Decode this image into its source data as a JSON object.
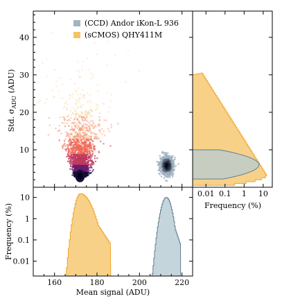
{
  "chart_data": [
    {
      "type": "scatter",
      "panel": "main",
      "xlim": [
        150,
        225
      ],
      "ylim": [
        0,
        47
      ],
      "yticks": [
        10,
        20,
        30,
        40
      ],
      "ylabel_prefix": "Std. σ",
      "ylabel_sub": "ADU",
      "ylabel_suffix": " (ADU)",
      "series": [
        {
          "name": "(CCD) Andor iKon-L 936",
          "color": "#9fb6c1",
          "dark": "#121425",
          "center": [
            212.5,
            6.0
          ],
          "spread": [
            2.8,
            2.2
          ]
        },
        {
          "name": "(sCMOS) QHY411M",
          "color": "#f5c261",
          "dark": "#160f3b",
          "center": [
            172.0,
            3.0
          ],
          "spread_x": [
            2.0,
            9.0
          ],
          "spread_y": [
            1.0,
            14.0
          ]
        }
      ]
    },
    {
      "type": "area",
      "panel": "bottom",
      "xlim": [
        150,
        225
      ],
      "xticks": [
        160,
        180,
        200,
        220
      ],
      "xlabel": "Mean signal (ADU)",
      "ylabel": "Frequency (%)",
      "yscale": "log",
      "ylim": [
        0.002,
        30
      ],
      "yticks": [
        0.01,
        0.1,
        1,
        10
      ],
      "ytick_labels": [
        "0.01",
        "0.1",
        "1",
        "10"
      ],
      "series": [
        {
          "name": "(sCMOS) QHY411M",
          "peak_x": 172,
          "peak_y": 15,
          "color": "#f5c261",
          "edge": "#f0a32a",
          "x_range": [
            162,
            186
          ]
        },
        {
          "name": "(CCD) Andor iKon-L 936",
          "peak_x": 212.5,
          "peak_y": 10,
          "color": "#b7cbd3",
          "edge": "#5f7f8e",
          "x_range": [
            206,
            219
          ]
        }
      ]
    },
    {
      "type": "area",
      "panel": "right",
      "orientation": "horizontal",
      "xscale": "log",
      "xlim": [
        0.002,
        30
      ],
      "xticks": [
        0.01,
        0.1,
        1,
        10
      ],
      "xtick_labels": [
        "0.01",
        "0.1",
        "1",
        "10"
      ],
      "xlabel": "Frequency (%)",
      "ylim": [
        0,
        47
      ]
    }
  ],
  "legend": {
    "position": "top",
    "items": [
      {
        "label": "(CCD) Andor iKon-L 936",
        "color": "#9fb6c1"
      },
      {
        "label": "(sCMOS) QHY411M",
        "color": "#f5c261"
      }
    ]
  }
}
